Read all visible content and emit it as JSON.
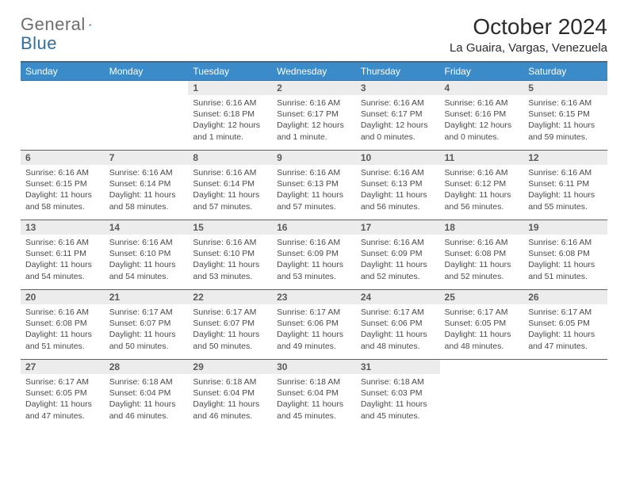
{
  "logo": {
    "word1": "General",
    "word2": "Blue"
  },
  "title": "October 2024",
  "location": "La Guaira, Vargas, Venezuela",
  "colors": {
    "header_bg": "#3b8bc9",
    "header_border": "#2d6fa3",
    "daynum_bg": "#ececec",
    "text": "#4a4a4a",
    "logo_gray": "#6e6e6e",
    "logo_blue": "#2d6fa3"
  },
  "day_headers": [
    "Sunday",
    "Monday",
    "Tuesday",
    "Wednesday",
    "Thursday",
    "Friday",
    "Saturday"
  ],
  "weeks": [
    [
      null,
      null,
      {
        "n": "1",
        "sr": "6:16 AM",
        "ss": "6:18 PM",
        "dl": "12 hours and 1 minute."
      },
      {
        "n": "2",
        "sr": "6:16 AM",
        "ss": "6:17 PM",
        "dl": "12 hours and 1 minute."
      },
      {
        "n": "3",
        "sr": "6:16 AM",
        "ss": "6:17 PM",
        "dl": "12 hours and 0 minutes."
      },
      {
        "n": "4",
        "sr": "6:16 AM",
        "ss": "6:16 PM",
        "dl": "12 hours and 0 minutes."
      },
      {
        "n": "5",
        "sr": "6:16 AM",
        "ss": "6:15 PM",
        "dl": "11 hours and 59 minutes."
      }
    ],
    [
      {
        "n": "6",
        "sr": "6:16 AM",
        "ss": "6:15 PM",
        "dl": "11 hours and 58 minutes."
      },
      {
        "n": "7",
        "sr": "6:16 AM",
        "ss": "6:14 PM",
        "dl": "11 hours and 58 minutes."
      },
      {
        "n": "8",
        "sr": "6:16 AM",
        "ss": "6:14 PM",
        "dl": "11 hours and 57 minutes."
      },
      {
        "n": "9",
        "sr": "6:16 AM",
        "ss": "6:13 PM",
        "dl": "11 hours and 57 minutes."
      },
      {
        "n": "10",
        "sr": "6:16 AM",
        "ss": "6:13 PM",
        "dl": "11 hours and 56 minutes."
      },
      {
        "n": "11",
        "sr": "6:16 AM",
        "ss": "6:12 PM",
        "dl": "11 hours and 56 minutes."
      },
      {
        "n": "12",
        "sr": "6:16 AM",
        "ss": "6:11 PM",
        "dl": "11 hours and 55 minutes."
      }
    ],
    [
      {
        "n": "13",
        "sr": "6:16 AM",
        "ss": "6:11 PM",
        "dl": "11 hours and 54 minutes."
      },
      {
        "n": "14",
        "sr": "6:16 AM",
        "ss": "6:10 PM",
        "dl": "11 hours and 54 minutes."
      },
      {
        "n": "15",
        "sr": "6:16 AM",
        "ss": "6:10 PM",
        "dl": "11 hours and 53 minutes."
      },
      {
        "n": "16",
        "sr": "6:16 AM",
        "ss": "6:09 PM",
        "dl": "11 hours and 53 minutes."
      },
      {
        "n": "17",
        "sr": "6:16 AM",
        "ss": "6:09 PM",
        "dl": "11 hours and 52 minutes."
      },
      {
        "n": "18",
        "sr": "6:16 AM",
        "ss": "6:08 PM",
        "dl": "11 hours and 52 minutes."
      },
      {
        "n": "19",
        "sr": "6:16 AM",
        "ss": "6:08 PM",
        "dl": "11 hours and 51 minutes."
      }
    ],
    [
      {
        "n": "20",
        "sr": "6:16 AM",
        "ss": "6:08 PM",
        "dl": "11 hours and 51 minutes."
      },
      {
        "n": "21",
        "sr": "6:17 AM",
        "ss": "6:07 PM",
        "dl": "11 hours and 50 minutes."
      },
      {
        "n": "22",
        "sr": "6:17 AM",
        "ss": "6:07 PM",
        "dl": "11 hours and 50 minutes."
      },
      {
        "n": "23",
        "sr": "6:17 AM",
        "ss": "6:06 PM",
        "dl": "11 hours and 49 minutes."
      },
      {
        "n": "24",
        "sr": "6:17 AM",
        "ss": "6:06 PM",
        "dl": "11 hours and 48 minutes."
      },
      {
        "n": "25",
        "sr": "6:17 AM",
        "ss": "6:05 PM",
        "dl": "11 hours and 48 minutes."
      },
      {
        "n": "26",
        "sr": "6:17 AM",
        "ss": "6:05 PM",
        "dl": "11 hours and 47 minutes."
      }
    ],
    [
      {
        "n": "27",
        "sr": "6:17 AM",
        "ss": "6:05 PM",
        "dl": "11 hours and 47 minutes."
      },
      {
        "n": "28",
        "sr": "6:18 AM",
        "ss": "6:04 PM",
        "dl": "11 hours and 46 minutes."
      },
      {
        "n": "29",
        "sr": "6:18 AM",
        "ss": "6:04 PM",
        "dl": "11 hours and 46 minutes."
      },
      {
        "n": "30",
        "sr": "6:18 AM",
        "ss": "6:04 PM",
        "dl": "11 hours and 45 minutes."
      },
      {
        "n": "31",
        "sr": "6:18 AM",
        "ss": "6:03 PM",
        "dl": "11 hours and 45 minutes."
      },
      null,
      null
    ]
  ],
  "labels": {
    "sunrise": "Sunrise:",
    "sunset": "Sunset:",
    "daylight": "Daylight:"
  }
}
